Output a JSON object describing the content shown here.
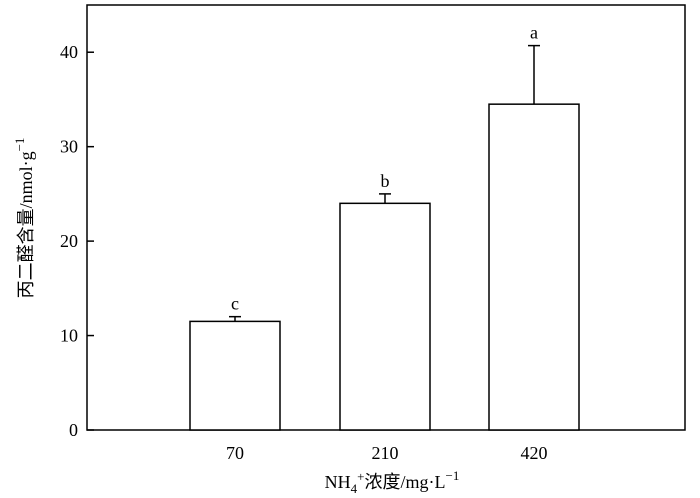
{
  "chart_data": {
    "type": "bar",
    "categories": [
      "70",
      "210",
      "420"
    ],
    "values": [
      11.5,
      24.0,
      34.5
    ],
    "error_upper": [
      0.5,
      1.0,
      6.2
    ],
    "significance_letters": [
      "c",
      "b",
      "a"
    ],
    "title": "",
    "xlabel": {
      "prefix": "NH",
      "sub": "4",
      "sup": "+",
      "rest": "浓度/mg·L",
      "unit_sup": "−1"
    },
    "ylabel": {
      "main": "丙二醛含量/nmol·g",
      "sup": "−1"
    },
    "ylim": [
      0,
      45
    ],
    "yticks": [
      0,
      10,
      20,
      30,
      40
    ],
    "grid": false,
    "legend": "none",
    "bar_fill": "#ffffff",
    "bar_stroke": "#000000"
  }
}
